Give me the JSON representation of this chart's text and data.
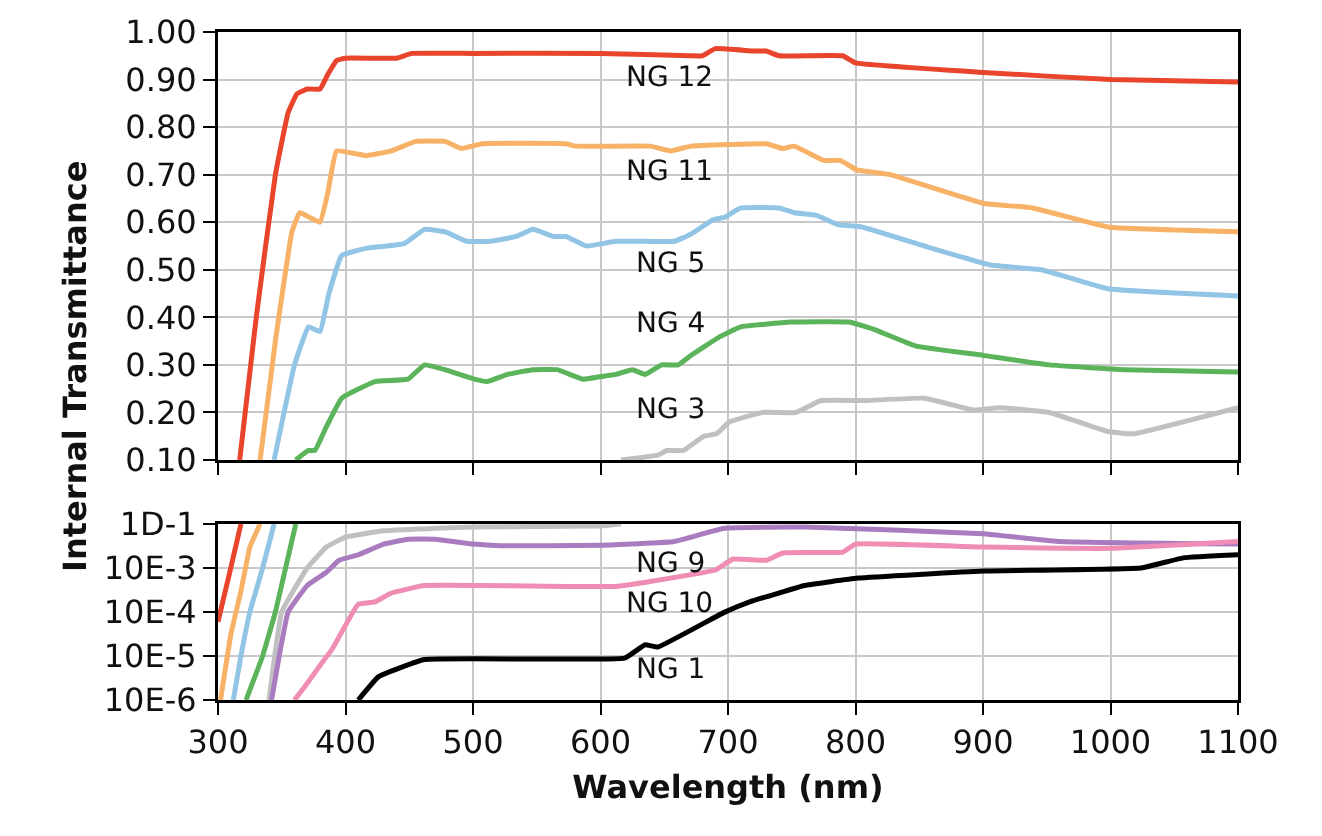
{
  "chart_data": [
    {
      "type": "line",
      "ylabel": "Internal Transmittance",
      "xlim": [
        300,
        1100
      ],
      "xticks": [
        {
          "value": 300,
          "label": null
        },
        {
          "value": 400,
          "label": null
        },
        {
          "value": 500,
          "label": null
        },
        {
          "value": 600,
          "label": null
        },
        {
          "value": 700,
          "label": null
        },
        {
          "value": 800,
          "label": null
        },
        {
          "value": 900,
          "label": null
        },
        {
          "value": 1000,
          "label": null
        },
        {
          "value": 1100,
          "label": null
        }
      ],
      "ylim": [
        0.1,
        1.0
      ],
      "yticks": [
        {
          "value": 0.1,
          "label": "0.10"
        },
        {
          "value": 0.2,
          "label": "0.20"
        },
        {
          "value": 0.3,
          "label": "0.30"
        },
        {
          "value": 0.4,
          "label": "0.40"
        },
        {
          "value": 0.5,
          "label": "0.50"
        },
        {
          "value": 0.6,
          "label": "0.60"
        },
        {
          "value": 0.7,
          "label": "0.70"
        },
        {
          "value": 0.8,
          "label": "0.80"
        },
        {
          "value": 0.9,
          "label": "0.90"
        },
        {
          "value": 1.0,
          "label": "1.00"
        }
      ],
      "tick_labels": "y",
      "grid": true,
      "legend": false,
      "series": [
        {
          "name": "NG 12",
          "color": "#e8452c",
          "x": [
            317,
            330,
            345,
            355,
            362,
            370,
            380,
            386,
            393,
            400,
            440,
            452,
            500,
            600,
            670,
            680,
            690,
            720,
            730,
            740,
            790,
            800,
            900,
            1000,
            1100
          ],
          "values": [
            0.1,
            0.4,
            0.7,
            0.83,
            0.87,
            0.88,
            0.88,
            0.91,
            0.94,
            0.945,
            0.945,
            0.955,
            0.955,
            0.955,
            0.95,
            0.95,
            0.965,
            0.96,
            0.96,
            0.95,
            0.95,
            0.935,
            0.915,
            0.9,
            0.895
          ]
        },
        {
          "name": "NG 11",
          "color": "#f7b267",
          "x": [
            333,
            345,
            358,
            364,
            372,
            380,
            386,
            393,
            416,
            436,
            455,
            478,
            491,
            507,
            573,
            580,
            639,
            655,
            671,
            730,
            743,
            752,
            775,
            788,
            801,
            827,
            900,
            939,
            998,
            1100
          ],
          "values": [
            0.1,
            0.35,
            0.58,
            0.62,
            0.61,
            0.6,
            0.66,
            0.75,
            0.74,
            0.75,
            0.77,
            0.77,
            0.755,
            0.765,
            0.765,
            0.76,
            0.76,
            0.75,
            0.76,
            0.765,
            0.755,
            0.76,
            0.73,
            0.73,
            0.71,
            0.7,
            0.64,
            0.63,
            0.59,
            0.58
          ]
        },
        {
          "name": "NG 5",
          "color": "#92c5e5",
          "x": [
            344,
            360,
            371,
            380,
            387,
            397,
            416,
            446,
            462,
            478,
            495,
            514,
            534,
            547,
            563,
            573,
            589,
            612,
            658,
            671,
            688,
            697,
            710,
            740,
            752,
            769,
            786,
            805,
            854,
            906,
            946,
            998,
            1100
          ],
          "values": [
            0.1,
            0.3,
            0.38,
            0.37,
            0.45,
            0.53,
            0.545,
            0.555,
            0.585,
            0.58,
            0.56,
            0.56,
            0.57,
            0.585,
            0.57,
            0.57,
            0.55,
            0.56,
            0.56,
            0.575,
            0.605,
            0.61,
            0.63,
            0.63,
            0.62,
            0.615,
            0.595,
            0.59,
            0.55,
            0.51,
            0.5,
            0.46,
            0.445
          ]
        },
        {
          "name": "NG 4",
          "color": "#5bb35a",
          "x": [
            361,
            371,
            376,
            385,
            397,
            423,
            449,
            462,
            478,
            501,
            511,
            527,
            547,
            566,
            586,
            599,
            612,
            625,
            635,
            648,
            661,
            671,
            694,
            710,
            749,
            795,
            814,
            847,
            900,
            952,
            1011,
            1100
          ],
          "values": [
            0.1,
            0.12,
            0.12,
            0.17,
            0.23,
            0.265,
            0.27,
            0.3,
            0.29,
            0.27,
            0.265,
            0.28,
            0.29,
            0.29,
            0.27,
            0.275,
            0.28,
            0.29,
            0.28,
            0.3,
            0.3,
            0.32,
            0.36,
            0.38,
            0.39,
            0.39,
            0.375,
            0.34,
            0.32,
            0.3,
            0.29,
            0.285
          ]
        },
        {
          "name": "NG 3",
          "color": "#c0c0c0",
          "x": [
            616,
            645,
            652,
            665,
            681,
            691,
            701,
            727,
            753,
            773,
            808,
            854,
            893,
            913,
            952,
            998,
            1018,
            1100
          ],
          "values": [
            0.1,
            0.11,
            0.12,
            0.12,
            0.15,
            0.155,
            0.18,
            0.2,
            0.2,
            0.225,
            0.225,
            0.23,
            0.205,
            0.21,
            0.2,
            0.16,
            0.155,
            0.21
          ]
        }
      ]
    },
    {
      "type": "line",
      "xlabel": "Wavelength (nm)",
      "xlim": [
        300,
        1100
      ],
      "xticks": [
        300,
        400,
        500,
        600,
        700,
        800,
        900,
        1000,
        1100
      ],
      "ylim": [
        1e-05,
        0.1
      ],
      "yticks": [
        {
          "value": 1e-05,
          "label": "10E-6"
        },
        {
          "value": 0.0001,
          "label": "10E-5"
        },
        {
          "value": 0.001,
          "label": "10E-4"
        },
        {
          "value": 0.01,
          "label": "10E-3"
        },
        {
          "value": 0.1,
          "label": "1D-1"
        }
      ],
      "log": "y",
      "grid": true,
      "legend": false,
      "series": [
        {
          "color": "#e8452c",
          "x": [
            300,
            310,
            318
          ],
          "values": [
            0.0006,
            0.01,
            0.1
          ]
        },
        {
          "color": "#f7b267",
          "x": [
            302,
            310,
            318,
            325,
            333
          ],
          "values": [
            1e-05,
            0.0003,
            0.003,
            0.03,
            0.1
          ]
        },
        {
          "color": "#92c5e5",
          "x": [
            312,
            318,
            325,
            335,
            344
          ],
          "values": [
            1e-05,
            0.0001,
            0.001,
            0.01,
            0.1
          ]
        },
        {
          "color": "#5bb35a",
          "x": [
            322,
            335,
            345,
            353,
            361
          ],
          "values": [
            1e-05,
            0.0001,
            0.001,
            0.01,
            0.1
          ]
        },
        {
          "color": "#c0c0c0",
          "x": [
            340,
            350,
            370,
            385,
            400,
            430,
            500,
            600,
            616
          ],
          "values": [
            1e-05,
            0.001,
            0.01,
            0.03,
            0.05,
            0.07,
            0.085,
            0.09,
            0.1
          ]
        },
        {
          "name": "NG 9",
          "color": "#a97bbf",
          "x": [
            342,
            348,
            355,
            370,
            385,
            395,
            410,
            430,
            449,
            470,
            500,
            521,
            600,
            658,
            697,
            760,
            900,
            959,
            1100
          ],
          "values": [
            1e-05,
            0.0001,
            0.001,
            0.004,
            0.008,
            0.015,
            0.02,
            0.035,
            0.045,
            0.045,
            0.035,
            0.032,
            0.033,
            0.04,
            0.08,
            0.085,
            0.06,
            0.04,
            0.035
          ]
        },
        {
          "name": "NG 10",
          "color": "#f08db5",
          "x": [
            360,
            368,
            383,
            390,
            400,
            410,
            423,
            436,
            462,
            612,
            640,
            690,
            704,
            730,
            743,
            790,
            800,
            900,
            1000,
            1100
          ],
          "values": [
            1e-05,
            2e-05,
            8e-05,
            0.00015,
            0.0005,
            0.0015,
            0.0017,
            0.0027,
            0.004,
            0.0038,
            0.005,
            0.009,
            0.016,
            0.015,
            0.022,
            0.023,
            0.035,
            0.03,
            0.028,
            0.04
          ]
        },
        {
          "name": "NG 1",
          "color": "#000000",
          "x": [
            410,
            426,
            462,
            619,
            635,
            645,
            697,
            717,
            740,
            760,
            802,
            900,
            1024,
            1057,
            1100
          ],
          "values": [
            1e-05,
            3.4e-05,
            8.3e-05,
            9e-05,
            0.00018,
            0.00016,
            0.00098,
            0.0017,
            0.0027,
            0.004,
            0.0059,
            0.0085,
            0.01,
            0.017,
            0.02
          ]
        }
      ]
    }
  ]
}
